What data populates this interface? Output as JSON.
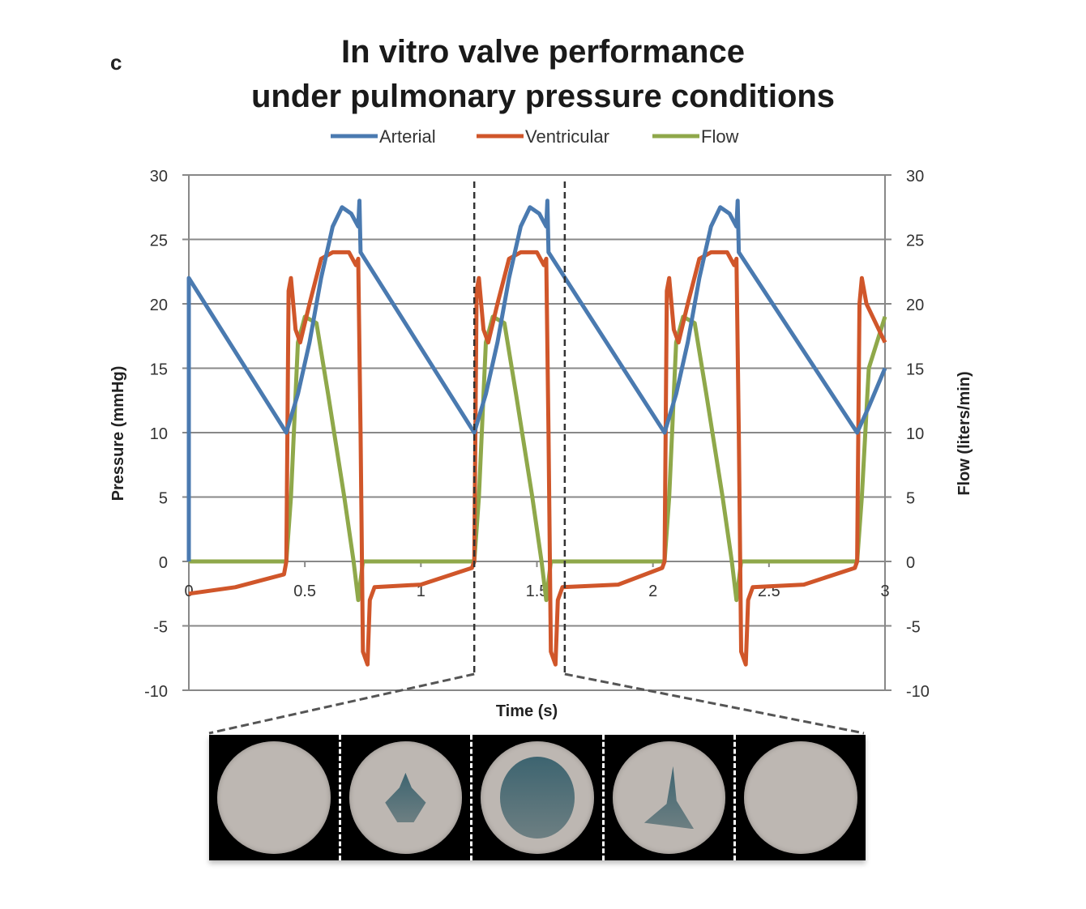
{
  "panel_label": "c",
  "chart_data": {
    "type": "line",
    "title": [
      "In vitro valve performance",
      "under pulmonary pressure conditions"
    ],
    "xlabel": "Time (s)",
    "ylabel": "Pressure (mmHg)",
    "y2label": "Flow (liters/min)",
    "xlim": [
      0,
      3
    ],
    "ylim": [
      -10,
      30
    ],
    "y2lim": [
      -10,
      30
    ],
    "xticks": [
      "0",
      "0.5",
      "1",
      "1.5",
      "2",
      "2.5",
      "3"
    ],
    "xtick_values": [
      0,
      0.5,
      1,
      1.5,
      2,
      2.5,
      3
    ],
    "yticks": [
      "30",
      "25",
      "20",
      "15",
      "10",
      "5",
      "0",
      "-5",
      "-10"
    ],
    "ytick_values": [
      30,
      25,
      20,
      15,
      10,
      5,
      0,
      -5,
      -10
    ],
    "grid": true,
    "legend_position": "top",
    "highlight_times": [
      1.23,
      1.62
    ],
    "series": [
      {
        "name": "Arterial",
        "color": "#4a7ab0",
        "points": [
          [
            0,
            0
          ],
          [
            0,
            22
          ],
          [
            0.42,
            10
          ],
          [
            0.47,
            13
          ],
          [
            0.52,
            17
          ],
          [
            0.57,
            22
          ],
          [
            0.62,
            26
          ],
          [
            0.66,
            27.5
          ],
          [
            0.7,
            27
          ],
          [
            0.73,
            26
          ],
          [
            0.735,
            28
          ],
          [
            0.74,
            24
          ],
          [
            1.23,
            10
          ],
          [
            1.28,
            13
          ],
          [
            1.33,
            17
          ],
          [
            1.38,
            22
          ],
          [
            1.43,
            26
          ],
          [
            1.47,
            27.5
          ],
          [
            1.51,
            27
          ],
          [
            1.54,
            26
          ],
          [
            1.545,
            28
          ],
          [
            1.55,
            24
          ],
          [
            2.05,
            10
          ],
          [
            2.1,
            13
          ],
          [
            2.15,
            17
          ],
          [
            2.2,
            22
          ],
          [
            2.25,
            26
          ],
          [
            2.29,
            27.5
          ],
          [
            2.33,
            27
          ],
          [
            2.36,
            26
          ],
          [
            2.365,
            28
          ],
          [
            2.37,
            24
          ],
          [
            2.88,
            10
          ],
          [
            2.93,
            12
          ],
          [
            3,
            15
          ]
        ]
      },
      {
        "name": "Ventricular",
        "color": "#d0562a",
        "points": [
          [
            0,
            -2.5
          ],
          [
            0.2,
            -2
          ],
          [
            0.41,
            -1
          ],
          [
            0.42,
            0
          ],
          [
            0.43,
            21
          ],
          [
            0.44,
            22
          ],
          [
            0.46,
            18
          ],
          [
            0.48,
            17
          ],
          [
            0.52,
            20
          ],
          [
            0.57,
            23.5
          ],
          [
            0.62,
            24
          ],
          [
            0.69,
            24
          ],
          [
            0.72,
            23
          ],
          [
            0.73,
            23.5
          ],
          [
            0.74,
            10
          ],
          [
            0.75,
            -7
          ],
          [
            0.77,
            -8
          ],
          [
            0.78,
            -3
          ],
          [
            0.8,
            -2
          ],
          [
            1.0,
            -1.8
          ],
          [
            1.22,
            -0.5
          ],
          [
            1.23,
            0
          ],
          [
            1.24,
            21
          ],
          [
            1.25,
            22
          ],
          [
            1.27,
            18
          ],
          [
            1.29,
            17
          ],
          [
            1.33,
            20
          ],
          [
            1.38,
            23.5
          ],
          [
            1.43,
            24
          ],
          [
            1.5,
            24
          ],
          [
            1.53,
            23
          ],
          [
            1.54,
            23.5
          ],
          [
            1.55,
            10
          ],
          [
            1.56,
            -7
          ],
          [
            1.58,
            -8
          ],
          [
            1.59,
            -3
          ],
          [
            1.61,
            -2
          ],
          [
            1.85,
            -1.8
          ],
          [
            2.04,
            -0.5
          ],
          [
            2.05,
            0
          ],
          [
            2.06,
            21
          ],
          [
            2.07,
            22
          ],
          [
            2.09,
            18
          ],
          [
            2.11,
            17
          ],
          [
            2.15,
            20
          ],
          [
            2.2,
            23.5
          ],
          [
            2.25,
            24
          ],
          [
            2.32,
            24
          ],
          [
            2.35,
            23
          ],
          [
            2.36,
            23.5
          ],
          [
            2.37,
            10
          ],
          [
            2.38,
            -7
          ],
          [
            2.4,
            -8
          ],
          [
            2.41,
            -3
          ],
          [
            2.43,
            -2
          ],
          [
            2.65,
            -1.8
          ],
          [
            2.87,
            -0.5
          ],
          [
            2.88,
            0
          ],
          [
            2.89,
            20
          ],
          [
            2.9,
            22
          ],
          [
            2.92,
            20
          ],
          [
            3,
            17
          ]
        ]
      },
      {
        "name": "Flow",
        "color": "#8fa84a",
        "points": [
          [
            0,
            0
          ],
          [
            0.42,
            0
          ],
          [
            0.44,
            5
          ],
          [
            0.47,
            17
          ],
          [
            0.5,
            19
          ],
          [
            0.55,
            18.5
          ],
          [
            0.6,
            13
          ],
          [
            0.67,
            5
          ],
          [
            0.71,
            0
          ],
          [
            0.73,
            -3
          ],
          [
            0.75,
            0
          ],
          [
            1.23,
            0
          ],
          [
            1.25,
            5
          ],
          [
            1.28,
            17
          ],
          [
            1.31,
            19
          ],
          [
            1.36,
            18.5
          ],
          [
            1.41,
            13
          ],
          [
            1.48,
            5
          ],
          [
            1.52,
            0
          ],
          [
            1.54,
            -3
          ],
          [
            1.56,
            0
          ],
          [
            2.05,
            0
          ],
          [
            2.07,
            5
          ],
          [
            2.1,
            17
          ],
          [
            2.13,
            19
          ],
          [
            2.18,
            18.5
          ],
          [
            2.23,
            13
          ],
          [
            2.3,
            5
          ],
          [
            2.34,
            0
          ],
          [
            2.36,
            -3
          ],
          [
            2.38,
            0
          ],
          [
            2.88,
            0
          ],
          [
            2.9,
            5
          ],
          [
            2.93,
            15
          ],
          [
            3,
            19
          ]
        ]
      }
    ]
  }
}
